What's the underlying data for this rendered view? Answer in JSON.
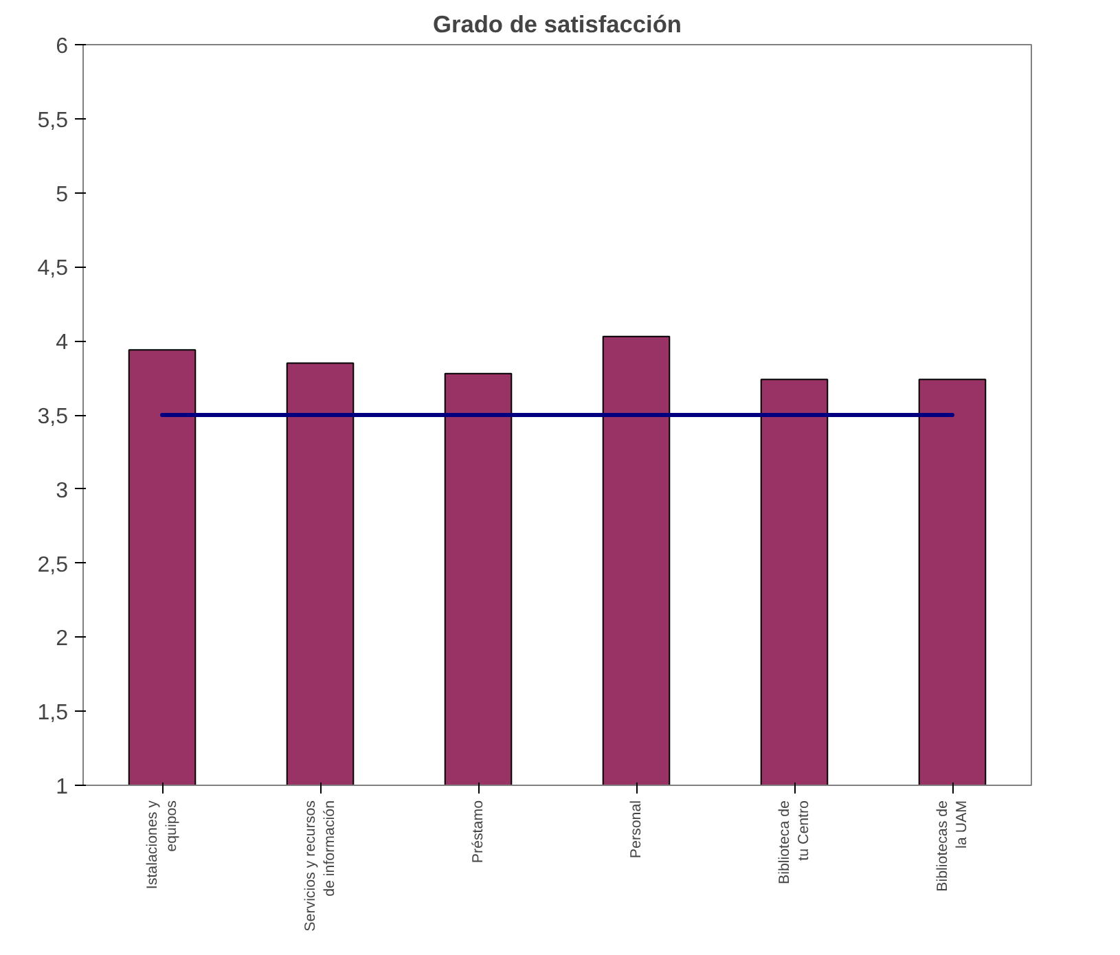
{
  "chart_data": {
    "type": "bar",
    "title": "Grado de satisfacción",
    "categories": [
      "Istalaciones y\nequipos",
      "Servicios y recursos\nde información",
      "Préstamo",
      "Personal",
      "Biblioteca de\ntu Centro",
      "Bibliotecas de\nla UAM"
    ],
    "series": [
      {
        "color": "#993366",
        "values": [
          3.94,
          3.85,
          3.78,
          4.03,
          3.74,
          3.74
        ]
      },
      {
        "type": "line",
        "color": "#000080",
        "values": [
          3.5,
          3.5,
          3.5,
          3.5,
          3.5,
          3.5
        ]
      }
    ],
    "ylim": [
      1,
      6
    ],
    "yticks": [
      1,
      {
        "value": 1.5,
        "label": "1,5"
      },
      2,
      {
        "value": 2.5,
        "label": "2,5"
      },
      3,
      {
        "value": 3.5,
        "label": "3,5"
      },
      4,
      {
        "value": 4.5,
        "label": "4,5"
      },
      5,
      {
        "value": 5.5,
        "label": "5,5"
      },
      6
    ],
    "grid": false
  }
}
